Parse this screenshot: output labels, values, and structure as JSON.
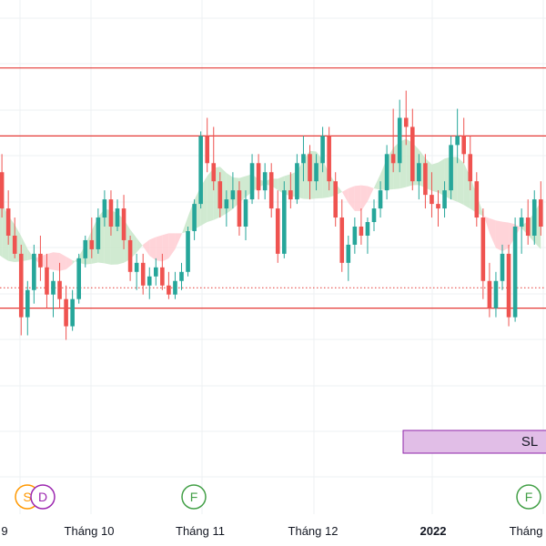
{
  "chart_data": {
    "type": "candlestick",
    "title": "",
    "xlabel": "",
    "ylabel": "",
    "grid": true,
    "colors": {
      "up": "#26a69a",
      "down": "#ef5350",
      "cloud_bullish": "#c8e6c9",
      "cloud_bearish": "#ffcdd2",
      "level_line": "#e53935",
      "sl_fill": "#e1bee7",
      "sl_border": "#8e24aa",
      "grid": "#eef0f3"
    },
    "x_ticks": [
      {
        "label": "9",
        "bold": false
      },
      {
        "label": "Tháng 10",
        "bold": false
      },
      {
        "label": "Tháng 11",
        "bold": false
      },
      {
        "label": "Tháng 12",
        "bold": false
      },
      {
        "label": "2022",
        "bold": true
      },
      {
        "label": "Tháng",
        "bold": false
      }
    ],
    "ylim": [
      0,
      100
    ],
    "levels": [
      85,
      70,
      32
    ],
    "dotted_level": 36.5,
    "sl_label": "SL",
    "markers": [
      {
        "label": "S",
        "color": "#ff9800"
      },
      {
        "label": "D",
        "color": "#9c27b0"
      },
      {
        "label": "F",
        "color": "#43a047"
      },
      {
        "label": "F",
        "color": "#43a047"
      }
    ],
    "candles": [
      [
        50,
        60,
        48,
        58
      ],
      [
        58,
        64,
        54,
        62
      ],
      [
        62,
        66,
        52,
        54
      ],
      [
        54,
        58,
        46,
        48
      ],
      [
        48,
        52,
        43,
        44
      ],
      [
        44,
        46,
        26,
        30
      ],
      [
        30,
        38,
        26,
        36
      ],
      [
        36,
        46,
        33,
        44
      ],
      [
        44,
        48,
        38,
        41
      ],
      [
        41,
        44,
        32,
        35
      ],
      [
        35,
        40,
        30,
        38
      ],
      [
        38,
        42,
        32,
        34
      ],
      [
        34,
        37,
        25,
        28
      ],
      [
        28,
        36,
        27,
        34
      ],
      [
        34,
        44,
        33,
        43
      ],
      [
        43,
        48,
        41,
        47
      ],
      [
        47,
        52,
        43,
        45
      ],
      [
        45,
        54,
        44,
        52
      ],
      [
        52,
        58,
        50,
        56
      ],
      [
        56,
        58,
        48,
        50
      ],
      [
        50,
        56,
        49,
        54
      ],
      [
        54,
        57,
        45,
        47
      ],
      [
        47,
        48,
        38,
        40
      ],
      [
        40,
        44,
        36,
        42
      ],
      [
        42,
        44,
        35,
        37
      ],
      [
        37,
        41,
        34,
        39
      ],
      [
        39,
        43,
        37,
        41
      ],
      [
        41,
        44,
        36,
        37
      ],
      [
        37,
        40,
        34,
        35
      ],
      [
        35,
        40,
        34,
        38
      ],
      [
        38,
        42,
        36,
        40
      ],
      [
        40,
        50,
        39,
        49
      ],
      [
        49,
        56,
        47,
        55
      ],
      [
        55,
        71,
        54,
        70
      ],
      [
        70,
        74,
        62,
        64
      ],
      [
        64,
        72,
        58,
        60
      ],
      [
        60,
        62,
        52,
        54
      ],
      [
        54,
        58,
        50,
        56
      ],
      [
        56,
        62,
        54,
        58
      ],
      [
        58,
        60,
        48,
        50
      ],
      [
        50,
        58,
        47,
        56
      ],
      [
        56,
        66,
        55,
        64
      ],
      [
        64,
        66,
        56,
        58
      ],
      [
        58,
        64,
        56,
        62
      ],
      [
        62,
        64,
        52,
        54
      ],
      [
        54,
        58,
        42,
        44
      ],
      [
        44,
        60,
        43,
        58
      ],
      [
        58,
        62,
        54,
        56
      ],
      [
        56,
        66,
        55,
        64
      ],
      [
        64,
        70,
        60,
        66
      ],
      [
        66,
        68,
        56,
        60
      ],
      [
        60,
        66,
        58,
        64
      ],
      [
        64,
        72,
        62,
        70
      ],
      [
        70,
        72,
        58,
        60
      ],
      [
        60,
        62,
        50,
        52
      ],
      [
        52,
        56,
        40,
        42
      ],
      [
        42,
        48,
        38,
        46
      ],
      [
        46,
        52,
        44,
        50
      ],
      [
        50,
        54,
        46,
        48
      ],
      [
        48,
        52,
        44,
        51
      ],
      [
        51,
        56,
        49,
        54
      ],
      [
        54,
        60,
        52,
        58
      ],
      [
        58,
        68,
        56,
        66
      ],
      [
        66,
        76,
        62,
        64
      ],
      [
        64,
        78,
        62,
        74
      ],
      [
        74,
        80,
        68,
        72
      ],
      [
        72,
        76,
        58,
        60
      ],
      [
        60,
        66,
        56,
        64
      ],
      [
        64,
        66,
        54,
        57
      ],
      [
        57,
        62,
        52,
        55
      ],
      [
        55,
        58,
        50,
        54
      ],
      [
        54,
        60,
        52,
        58
      ],
      [
        58,
        70,
        56,
        68
      ],
      [
        68,
        76,
        64,
        70
      ],
      [
        70,
        74,
        64,
        66
      ],
      [
        66,
        70,
        58,
        60
      ],
      [
        60,
        62,
        50,
        52
      ],
      [
        52,
        54,
        34,
        38
      ],
      [
        38,
        42,
        30,
        32
      ],
      [
        32,
        40,
        30,
        38
      ],
      [
        38,
        46,
        36,
        44
      ],
      [
        44,
        46,
        28,
        30
      ],
      [
        30,
        52,
        29,
        50
      ],
      [
        50,
        54,
        44,
        52
      ],
      [
        52,
        56,
        46,
        48
      ],
      [
        48,
        58,
        46,
        56
      ],
      [
        56,
        60,
        48,
        50
      ]
    ]
  }
}
